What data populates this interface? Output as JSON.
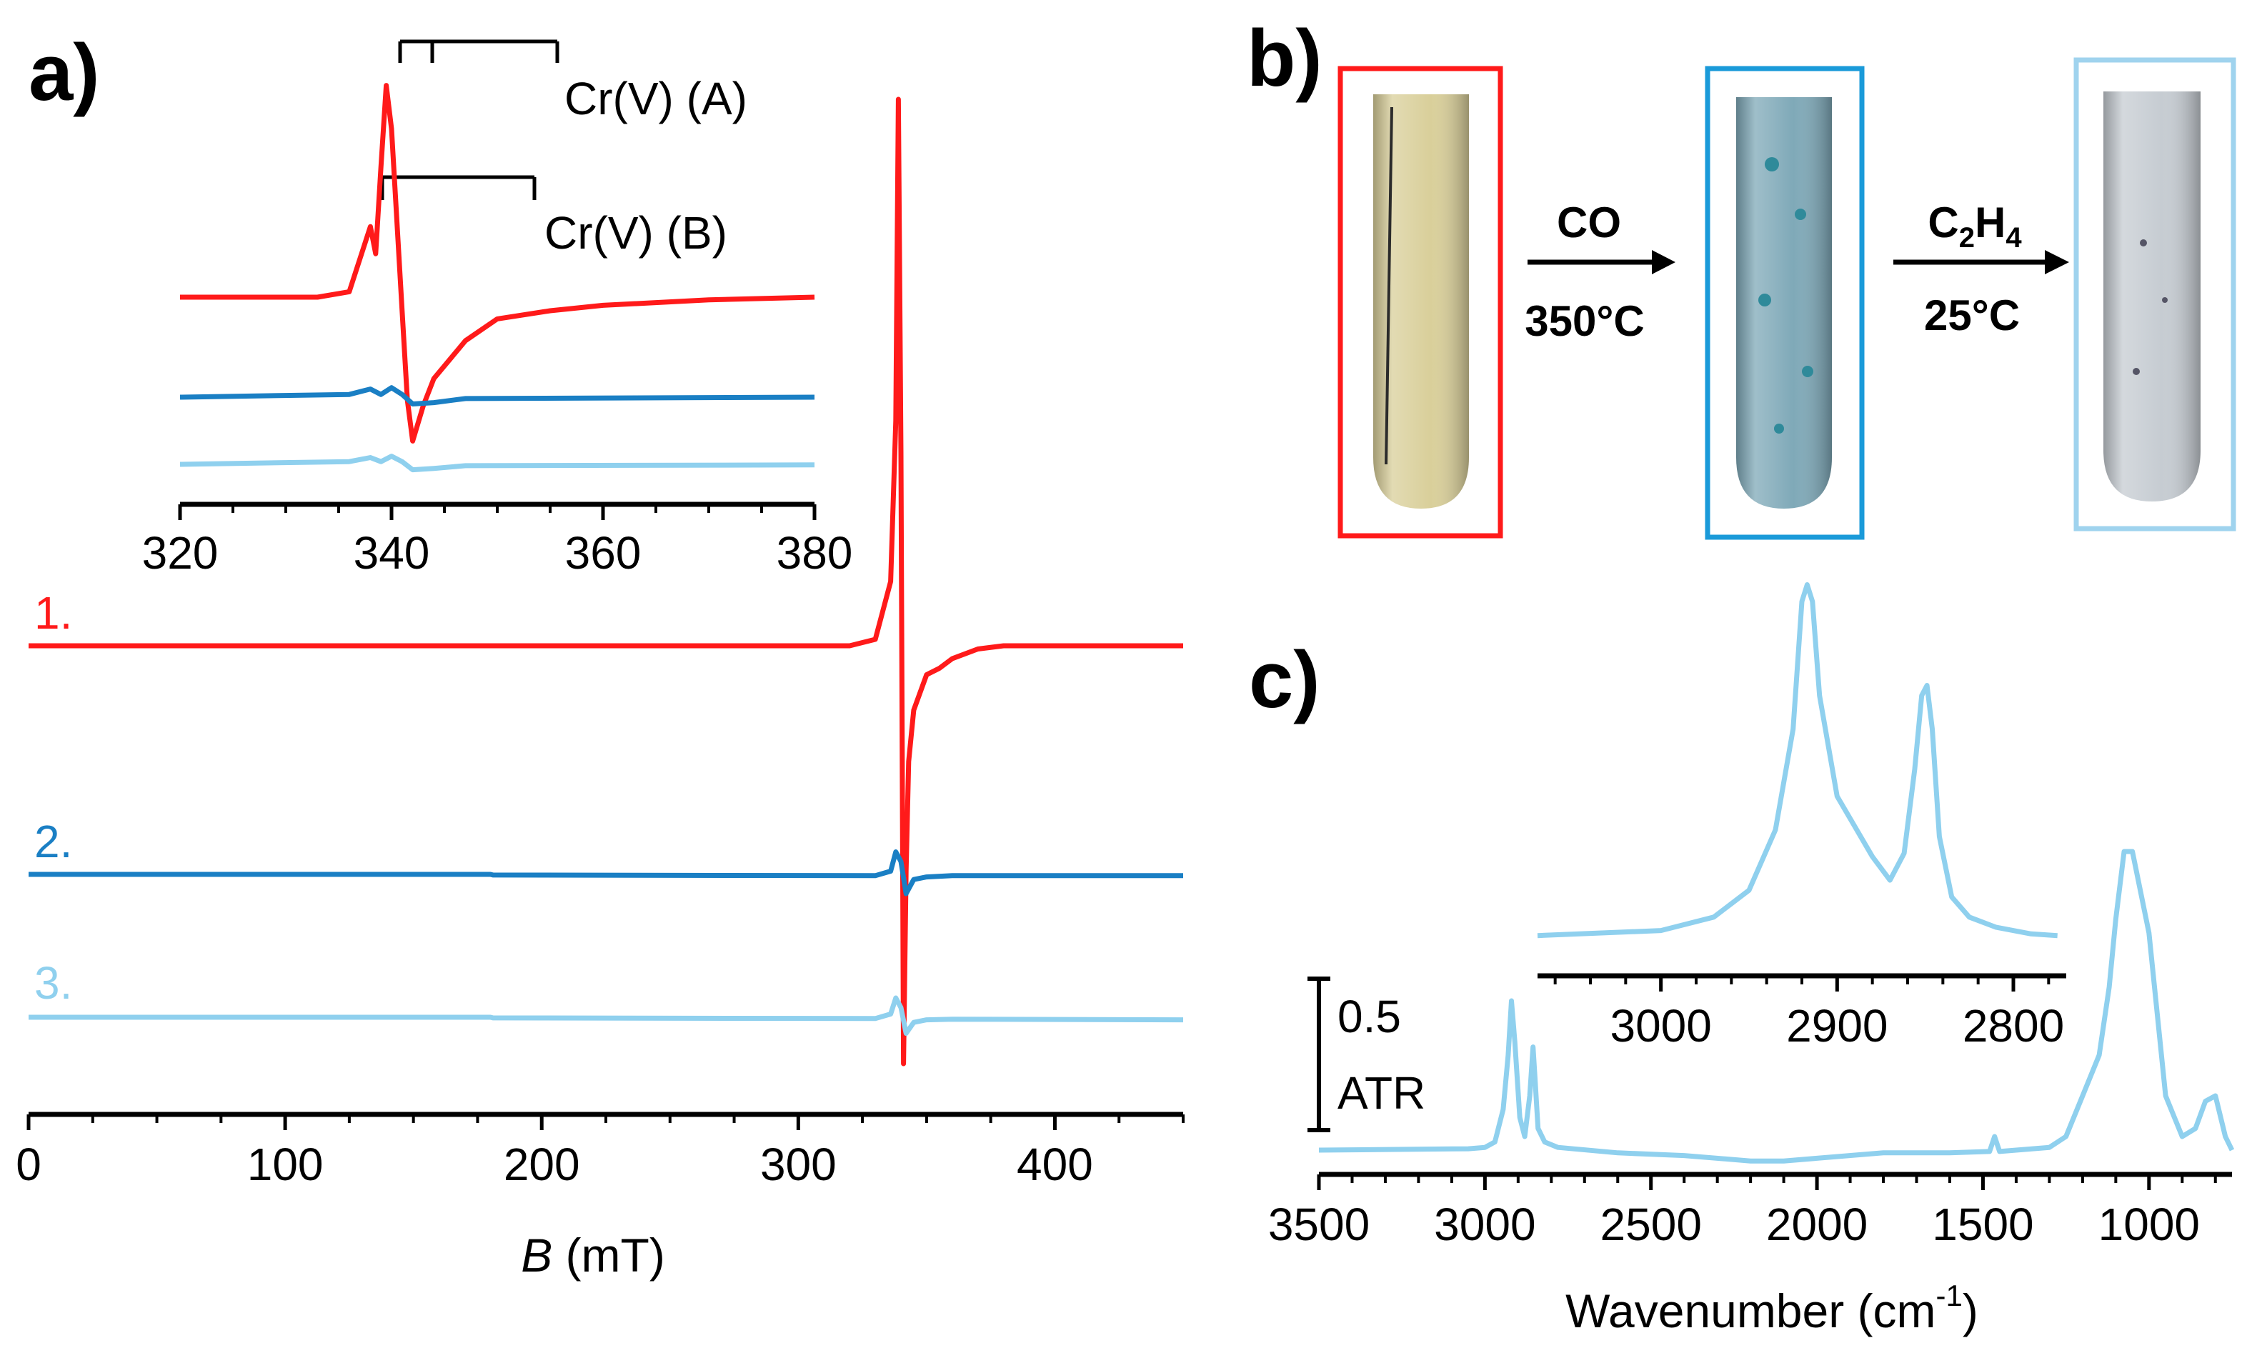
{
  "panel_labels": {
    "a": "a)",
    "b": "b)",
    "c": "c)"
  },
  "colors": {
    "trace1": "#ff1a1a",
    "trace2": "#1a7fc4",
    "trace3": "#8fd0ee",
    "axis": "#000000"
  },
  "panel_a": {
    "trace_labels": [
      "1.",
      "2.",
      "3."
    ],
    "xlabel_italic": "B",
    "xlabel_rest": " (mT)",
    "inset_annotations": [
      "Cr(V) (A)",
      "Cr(V) (B)"
    ]
  },
  "panel_b": {
    "arrow1_top": "CO",
    "arrow1_bottom": "350°C",
    "arrow2_top_main": "C",
    "arrow2_top_sub1": "2",
    "arrow2_top_h": "H",
    "arrow2_top_sub2": "4",
    "arrow2_bottom": "25°C",
    "tube_colors": [
      "#d9cf9a",
      "#7fa9b8",
      "#c6ccd2"
    ],
    "frame_colors": [
      "#ff1a1a",
      "#1a9ad9",
      "#9fd3ee"
    ]
  },
  "panel_c": {
    "scale_bar_value": "0.5",
    "scale_bar_unit": "ATR",
    "xlabel_main": "Wavenumber (cm",
    "xlabel_sup": "-1",
    "xlabel_close": ")"
  },
  "chart_data": [
    {
      "type": "line",
      "panel": "a",
      "xlabel": "B (mT)",
      "xlim": [
        0,
        450
      ],
      "xticks": [
        0,
        100,
        200,
        300,
        400
      ],
      "series": [
        {
          "name": "1.",
          "x": [
            0,
            320,
            330,
            336,
            338,
            339,
            340,
            341,
            342,
            343,
            345,
            350,
            355,
            360,
            370,
            380,
            400,
            450
          ],
          "y": [
            0,
            0,
            0.1,
            1.0,
            3.5,
            8.5,
            3.0,
            -6.5,
            -3.5,
            -1.8,
            -1.0,
            -0.45,
            -0.35,
            -0.2,
            -0.05,
            0,
            0,
            0
          ]
        },
        {
          "name": "2.",
          "x": [
            0,
            180,
            181,
            330,
            336,
            338,
            340,
            342,
            345,
            350,
            360,
            450
          ],
          "y": [
            0,
            0,
            -0.01,
            -0.02,
            0.05,
            0.35,
            0.2,
            -0.3,
            -0.08,
            -0.04,
            -0.02,
            -0.02
          ]
        },
        {
          "name": "3.",
          "x": [
            0,
            180,
            181,
            330,
            336,
            338,
            340,
            342,
            345,
            350,
            360,
            450
          ],
          "y": [
            0,
            0,
            -0.01,
            -0.02,
            0.05,
            0.3,
            0.15,
            -0.25,
            -0.08,
            -0.04,
            -0.03,
            -0.04
          ]
        }
      ]
    },
    {
      "type": "line",
      "panel": "a-inset",
      "xlim": [
        320,
        380
      ],
      "xticks": [
        320,
        340,
        360,
        380
      ],
      "series": [
        {
          "name": "1.",
          "x": [
            320,
            333,
            336,
            337,
            338,
            338.5,
            339,
            339.5,
            340,
            341,
            341.5,
            342,
            343,
            344,
            347,
            350,
            355,
            360,
            370,
            380
          ],
          "y": [
            0,
            0,
            0.2,
            1.4,
            2.6,
            1.6,
            4.8,
            7.8,
            6.2,
            -0.5,
            -3.8,
            -5.3,
            -4.0,
            -3.0,
            -1.6,
            -0.8,
            -0.5,
            -0.3,
            -0.1,
            0
          ]
        },
        {
          "name": "2.",
          "x": [
            320,
            336,
            338,
            339,
            340,
            341,
            342,
            344,
            347,
            380
          ],
          "y": [
            0,
            0.1,
            0.3,
            0.1,
            0.35,
            0.1,
            -0.25,
            -0.2,
            -0.05,
            0
          ]
        },
        {
          "name": "3.",
          "x": [
            320,
            336,
            338,
            339,
            340,
            341,
            342,
            344,
            347,
            380
          ],
          "y": [
            0,
            0.1,
            0.25,
            0.1,
            0.3,
            0.1,
            -0.2,
            -0.15,
            -0.05,
            -0.02
          ]
        }
      ]
    },
    {
      "type": "line",
      "panel": "c",
      "xlabel": "Wavenumber (cm-1)",
      "xlim": [
        3500,
        750
      ],
      "xticks": [
        3500,
        3000,
        2500,
        2000,
        1500,
        1000
      ],
      "series": [
        {
          "name": "",
          "x": [
            3500,
            3050,
            3000,
            2970,
            2945,
            2930,
            2920,
            2910,
            2895,
            2880,
            2865,
            2855,
            2850,
            2840,
            2820,
            2780,
            2600,
            2400,
            2200,
            2100,
            2000,
            1800,
            1600,
            1480,
            1465,
            1450,
            1300,
            1250,
            1200,
            1150,
            1120,
            1100,
            1075,
            1050,
            1000,
            950,
            900,
            860,
            830,
            800,
            770,
            750
          ],
          "y": [
            0,
            0.005,
            0.01,
            0.03,
            0.15,
            0.35,
            0.55,
            0.4,
            0.12,
            0.05,
            0.2,
            0.38,
            0.28,
            0.08,
            0.03,
            0.01,
            -0.01,
            -0.02,
            -0.04,
            -0.04,
            -0.03,
            -0.01,
            -0.01,
            -0.005,
            0.05,
            -0.005,
            0.01,
            0.05,
            0.2,
            0.35,
            0.6,
            0.85,
            1.1,
            1.1,
            0.8,
            0.2,
            0.05,
            0.08,
            0.18,
            0.2,
            0.05,
            0.0
          ]
        }
      ]
    },
    {
      "type": "line",
      "panel": "c-inset",
      "xlim": [
        3070,
        2770
      ],
      "xticks": [
        3000,
        2900,
        2800
      ],
      "series": [
        {
          "name": "",
          "x": [
            3070,
            3000,
            2970,
            2950,
            2935,
            2925,
            2920,
            2917,
            2914,
            2910,
            2900,
            2890,
            2880,
            2870,
            2862,
            2856,
            2852,
            2849,
            2846,
            2842,
            2835,
            2825,
            2810,
            2790,
            2775
          ],
          "y": [
            0.005,
            0.02,
            0.06,
            0.14,
            0.32,
            0.62,
            1.0,
            1.05,
            1.0,
            0.72,
            0.42,
            0.33,
            0.24,
            0.17,
            0.25,
            0.5,
            0.72,
            0.75,
            0.62,
            0.3,
            0.12,
            0.06,
            0.03,
            0.01,
            0.005
          ]
        }
      ]
    }
  ]
}
